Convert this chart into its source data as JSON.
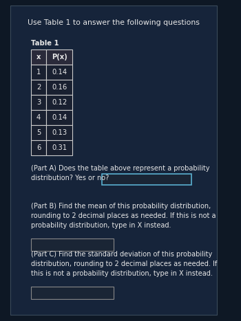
{
  "title": "Use Table 1 to answer the following questions",
  "table_title": "Table 1",
  "table_headers": [
    "x",
    "P(x)"
  ],
  "table_rows": [
    [
      "1",
      "0.14"
    ],
    [
      "2",
      "0.16"
    ],
    [
      "3",
      "0.12"
    ],
    [
      "4",
      "0.14"
    ],
    [
      "5",
      "0.13"
    ],
    [
      "6",
      "0.31"
    ]
  ],
  "part_a_line1": "(Part A) Does the table above represent a probability",
  "part_a_line2": "distribution? Yes or no?",
  "part_b_text": "(Part B) Find the mean of this probability distribution,\nrounding to 2 decimal places as needed. If this is not a\nprobability distribution, type in X instead.",
  "part_c_text": "(Part C) Find the standard deviation of this probability\ndistribution, rounding to 2 decimal places as needed. If\nthis is not a probability distribution, type in X instead.",
  "bg_color": "#0e1825",
  "panel_color": "#16243a",
  "text_color": "#e8e8e8",
  "table_border_color": "#cccccc",
  "table_header_bg": "#2a2a3a",
  "table_data_bg": "#192030",
  "input_box_bg": "#1a2535",
  "input_box_border_a": "#5ab0d0",
  "input_box_border_bc": "#888888",
  "font_size_title": 7.8,
  "font_size_table": 7.2,
  "font_size_body": 7.0
}
